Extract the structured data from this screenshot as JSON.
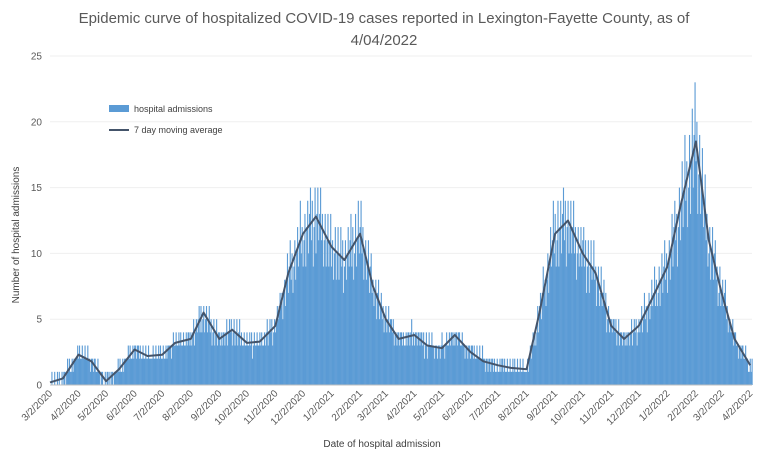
{
  "chart_data": {
    "type": "bar",
    "title_line1": "Epidemic curve of hospitalized COVID-19 cases reported in Lexington-Fayette County, as of",
    "title_line2": "4/04/2022",
    "xlabel": "Date of hospital admission",
    "ylabel": "Number of hospital admissions",
    "ylim": [
      0,
      25
    ],
    "yticks": [
      0,
      5,
      10,
      15,
      20,
      25
    ],
    "xticks": [
      "3/2/2020",
      "4/2/2020",
      "5/2/2020",
      "6/2/2020",
      "7/2/2020",
      "8/2/2020",
      "9/2/2020",
      "10/2/2020",
      "11/2/2020",
      "12/2/2020",
      "1/2/2021",
      "2/2/2021",
      "3/2/2021",
      "4/2/2021",
      "5/2/2021",
      "6/2/2021",
      "7/2/2021",
      "8/2/2021",
      "9/2/2021",
      "10/2/2021",
      "11/2/2021",
      "12/2/2021",
      "1/2/2022",
      "2/2/2022",
      "3/2/2022",
      "4/2/2022"
    ],
    "legend": {
      "placement": "top-left",
      "bar_label": "hospital admissions",
      "line_label": "7 day moving average"
    },
    "colors": {
      "bars": "#5b9bd5",
      "line": "#44546a"
    },
    "series": [
      {
        "name": "7 day moving average",
        "x": [
          "3/2/2020",
          "3/16/2020",
          "4/2/2020",
          "4/16/2020",
          "5/2/2020",
          "5/16/2020",
          "6/2/2020",
          "6/16/2020",
          "7/2/2020",
          "7/16/2020",
          "8/2/2020",
          "8/16/2020",
          "9/2/2020",
          "9/16/2020",
          "10/2/2020",
          "10/16/2020",
          "11/2/2020",
          "11/16/2020",
          "12/2/2020",
          "12/16/2020",
          "1/2/2021",
          "1/16/2021",
          "2/2/2021",
          "2/16/2021",
          "3/2/2021",
          "3/16/2021",
          "4/2/2021",
          "4/16/2021",
          "5/2/2021",
          "5/16/2021",
          "6/2/2021",
          "6/16/2021",
          "7/2/2021",
          "7/16/2021",
          "8/2/2021",
          "8/16/2021",
          "9/2/2021",
          "9/16/2021",
          "10/2/2021",
          "10/16/2021",
          "11/2/2021",
          "11/16/2021",
          "12/2/2021",
          "12/16/2021",
          "1/2/2022",
          "1/16/2022",
          "2/2/2022",
          "2/16/2022",
          "3/2/2022",
          "3/16/2022",
          "4/2/2022"
        ],
        "values": [
          0.2,
          0.5,
          2.3,
          1.8,
          0.3,
          1.2,
          2.7,
          2.2,
          2.3,
          3.2,
          3.5,
          5.5,
          3.5,
          4.2,
          3.2,
          3.3,
          4.5,
          8.5,
          11.5,
          12.8,
          10.5,
          9.5,
          11.5,
          7.5,
          5.0,
          3.5,
          3.8,
          3.0,
          2.8,
          3.8,
          2.5,
          1.8,
          1.5,
          1.3,
          1.2,
          5.5,
          11.5,
          12.5,
          10.0,
          8.5,
          4.5,
          3.5,
          4.5,
          6.5,
          9.0,
          13.5,
          18.5,
          11.0,
          7.0,
          3.5,
          1.5
        ]
      }
    ]
  }
}
